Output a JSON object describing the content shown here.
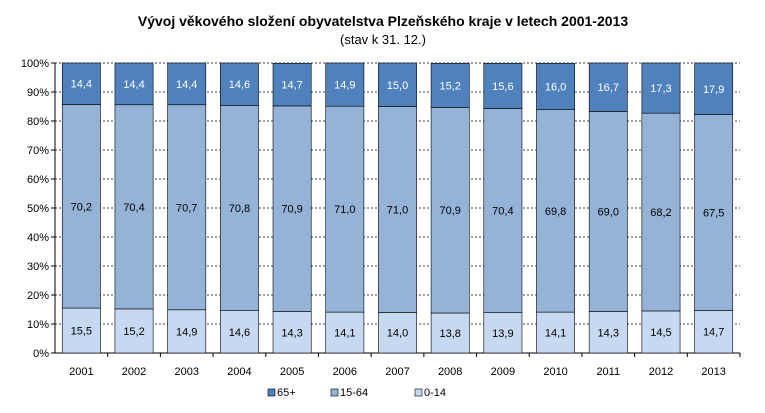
{
  "chart_data": {
    "type": "bar",
    "stacked": true,
    "percent": true,
    "title": "Vývoj věkového složení obyvatelstva Plzeňského kraje v letech 2001-2013",
    "subtitle": "(stav k 31. 12.)",
    "categories": [
      "2001",
      "2002",
      "2003",
      "2004",
      "2005",
      "2006",
      "2007",
      "2008",
      "2009",
      "2010",
      "2011",
      "2012",
      "2013"
    ],
    "series": [
      {
        "name": "0-14",
        "color": "#c6d9f1",
        "label_color": "#000000",
        "values": [
          15.5,
          15.2,
          14.9,
          14.6,
          14.3,
          14.1,
          14.0,
          13.8,
          13.9,
          14.1,
          14.3,
          14.5,
          14.7
        ],
        "labels": [
          "15,5",
          "15,2",
          "14,9",
          "14,6",
          "14,3",
          "14,1",
          "14,0",
          "13,8",
          "13,9",
          "14,1",
          "14,3",
          "14,5",
          "14,7"
        ]
      },
      {
        "name": "15-64",
        "color": "#95b3d7",
        "label_color": "#000000",
        "values": [
          70.2,
          70.4,
          70.7,
          70.8,
          70.9,
          71.0,
          71.0,
          70.9,
          70.4,
          69.8,
          69.0,
          68.2,
          67.5
        ],
        "labels": [
          "70,2",
          "70,4",
          "70,7",
          "70,8",
          "70,9",
          "71,0",
          "71,0",
          "70,9",
          "70,4",
          "69,8",
          "69,0",
          "68,2",
          "67,5"
        ]
      },
      {
        "name": "65+",
        "color": "#4f81bd",
        "label_color": "#ffffff",
        "values": [
          14.4,
          14.4,
          14.4,
          14.6,
          14.7,
          14.9,
          15.0,
          15.2,
          15.6,
          16.0,
          16.7,
          17.3,
          17.9
        ],
        "labels": [
          "14,4",
          "14,4",
          "14,4",
          "14,6",
          "14,7",
          "14,9",
          "15,0",
          "15,2",
          "15,6",
          "16,0",
          "16,7",
          "17,3",
          "17,9"
        ]
      }
    ],
    "ylim": [
      0,
      100
    ],
    "yticks": [
      "0%",
      "10%",
      "20%",
      "30%",
      "40%",
      "50%",
      "60%",
      "70%",
      "80%",
      "90%",
      "100%"
    ],
    "legend_order": [
      "65+",
      "15-64",
      "0-14"
    ],
    "legend_position": "bottom",
    "grid": true
  }
}
